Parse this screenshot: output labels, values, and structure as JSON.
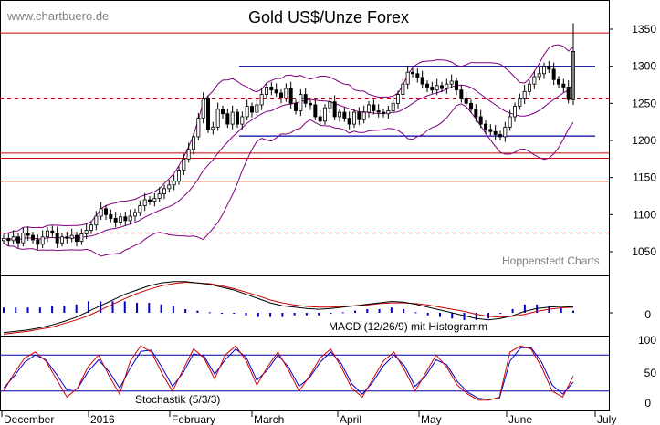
{
  "header": {
    "site": "www.chartbuero.de",
    "title": "Gold US$/Unze Forex",
    "source": "Hoppenstedt Charts"
  },
  "colors": {
    "price": "#000000",
    "bollinger": "#800080",
    "support_resistance": "#cc0000",
    "trendline": "#0000aa",
    "macd_hist": "#0000cc",
    "stoch_fast": "#cc0000",
    "stoch_slow": "#0000cc"
  },
  "chart_data": [
    {
      "type": "candlestick",
      "title": "Gold US$/Unze Forex",
      "y_ticks": [
        1050,
        1100,
        1150,
        1200,
        1250,
        1300,
        1350
      ],
      "ylim": [
        1040,
        1362
      ],
      "months": [
        "December",
        "2016",
        "February",
        "March",
        "April",
        "May",
        "June",
        "July"
      ],
      "series": [
        {
          "name": "Close (approx.)",
          "values": [
            1068,
            1065,
            1070,
            1062,
            1075,
            1072,
            1066,
            1060,
            1070,
            1078,
            1075,
            1062,
            1070,
            1068,
            1072,
            1064,
            1074,
            1079,
            1086,
            1098,
            1108,
            1100,
            1095,
            1090,
            1097,
            1092,
            1098,
            1103,
            1112,
            1120,
            1118,
            1122,
            1128,
            1135,
            1140,
            1145,
            1160,
            1175,
            1188,
            1205,
            1230,
            1256,
            1215,
            1218,
            1242,
            1236,
            1222,
            1238,
            1222,
            1232,
            1246,
            1238,
            1248,
            1262,
            1272,
            1268,
            1264,
            1257,
            1270,
            1250,
            1240,
            1262,
            1250,
            1248,
            1232,
            1226,
            1244,
            1252,
            1232,
            1238,
            1230,
            1222,
            1238,
            1228,
            1238,
            1248,
            1240,
            1238,
            1236,
            1240,
            1250,
            1262,
            1276,
            1292,
            1290,
            1285,
            1276,
            1272,
            1268,
            1274,
            1270,
            1276,
            1280,
            1268,
            1256,
            1250,
            1242,
            1232,
            1222,
            1215,
            1212,
            1208,
            1205,
            1218,
            1232,
            1246,
            1256,
            1266,
            1276,
            1286,
            1290,
            1300,
            1296,
            1282,
            1276,
            1272,
            1255,
            1320
          ]
        }
      ],
      "horizontal_lines": {
        "solid_red": [
          1345,
          1183,
          1176,
          1145
        ],
        "dashed_red": [
          1256,
          1075
        ],
        "blue": [
          1300,
          1206
        ]
      }
    },
    {
      "type": "line",
      "title": "MACD (12/26/9) mit Histogramm",
      "y_ticks": [
        0
      ],
      "series": [
        {
          "name": "MACD",
          "values": [
            -28,
            -26,
            -24,
            -21,
            -17,
            -12,
            -6,
            2,
            10,
            18,
            26,
            32,
            38,
            42,
            44,
            44,
            42,
            40,
            36,
            32,
            26,
            20,
            14,
            10,
            8,
            6,
            5,
            6,
            8,
            10,
            12,
            14,
            16,
            15,
            12,
            8,
            4,
            0,
            -4,
            -8,
            -10,
            -8,
            -4,
            2,
            6,
            8,
            9,
            8
          ]
        },
        {
          "name": "Signal",
          "values": [
            -30,
            -28,
            -26,
            -23,
            -20,
            -15,
            -10,
            -4,
            4,
            12,
            20,
            27,
            33,
            38,
            41,
            43,
            42,
            41,
            38,
            34,
            29,
            24,
            18,
            14,
            11,
            9,
            8,
            8,
            9,
            10,
            11,
            13,
            14,
            14,
            13,
            11,
            8,
            5,
            2,
            -2,
            -5,
            -6,
            -5,
            -2,
            2,
            5,
            7,
            8
          ]
        }
      ]
    },
    {
      "type": "line",
      "title": "Stochastik (5/3/3)",
      "y_ticks": [
        0,
        50,
        100
      ],
      "ylim": [
        0,
        100
      ],
      "bands": [
        80,
        20
      ],
      "series": [
        {
          "name": "%K",
          "values": [
            20,
            50,
            75,
            85,
            70,
            40,
            10,
            25,
            60,
            80,
            45,
            15,
            70,
            95,
            85,
            50,
            20,
            55,
            90,
            75,
            40,
            80,
            95,
            70,
            30,
            60,
            85,
            55,
            20,
            45,
            75,
            90,
            60,
            25,
            10,
            40,
            70,
            85,
            55,
            20,
            50,
            80,
            60,
            30,
            15,
            5,
            5,
            10,
            85,
            95,
            90,
            60,
            20,
            10,
            45
          ]
        },
        {
          "name": "%D",
          "values": [
            25,
            45,
            68,
            80,
            72,
            48,
            22,
            24,
            52,
            72,
            52,
            25,
            58,
            86,
            88,
            60,
            28,
            50,
            82,
            78,
            48,
            72,
            90,
            76,
            38,
            55,
            80,
            60,
            28,
            42,
            68,
            85,
            66,
            32,
            15,
            35,
            62,
            80,
            62,
            28,
            45,
            72,
            64,
            36,
            18,
            8,
            6,
            8,
            70,
            92,
            92,
            68,
            30,
            15,
            35
          ]
        }
      ]
    }
  ],
  "macd_ticks": [
    "0"
  ],
  "stoch_ticks": [
    "100",
    "50",
    "0"
  ],
  "price_ticks": [
    "1350",
    "1300",
    "1250",
    "1200",
    "1150",
    "1100",
    "1050"
  ]
}
